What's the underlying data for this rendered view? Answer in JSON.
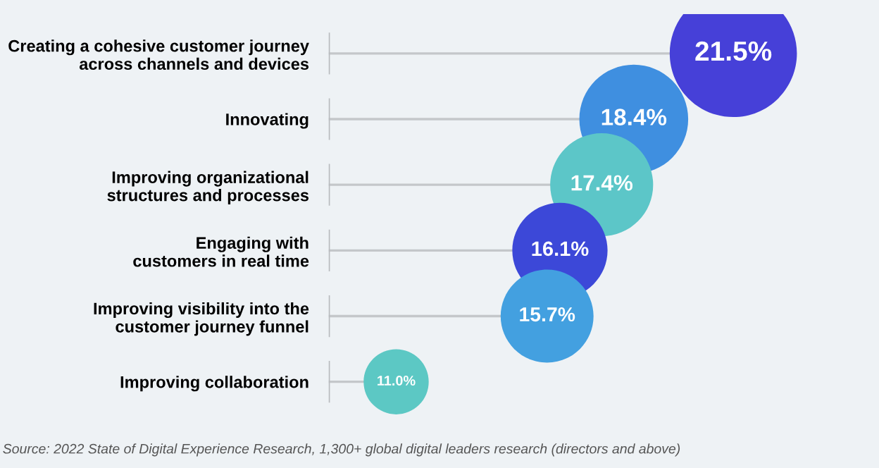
{
  "chart_data": {
    "type": "other",
    "categories": [
      "Creating a cohesive customer journey\nacross channels and devices",
      "Innovating",
      "Improving organizational\nstructures and processes",
      "Engaging with\ncustomers in real time",
      "Improving visibility into the\ncustomer journey funnel",
      "Improving collaboration"
    ],
    "values": [
      21.5,
      18.4,
      17.4,
      16.1,
      15.7,
      11.0
    ],
    "value_labels": [
      "21.5%",
      "18.4%",
      "17.4%",
      "16.1%",
      "15.7%",
      "11.0%"
    ],
    "colors": [
      "#4640d8",
      "#3f8fe0",
      "#5cc6c8",
      "#3c48d8",
      "#43a0e0",
      "#5cc8c4"
    ],
    "annotations": [
      "Source: 2022 State of Digital Experience Research, 1,300+ global digital leaders research (directors and above)"
    ]
  }
}
